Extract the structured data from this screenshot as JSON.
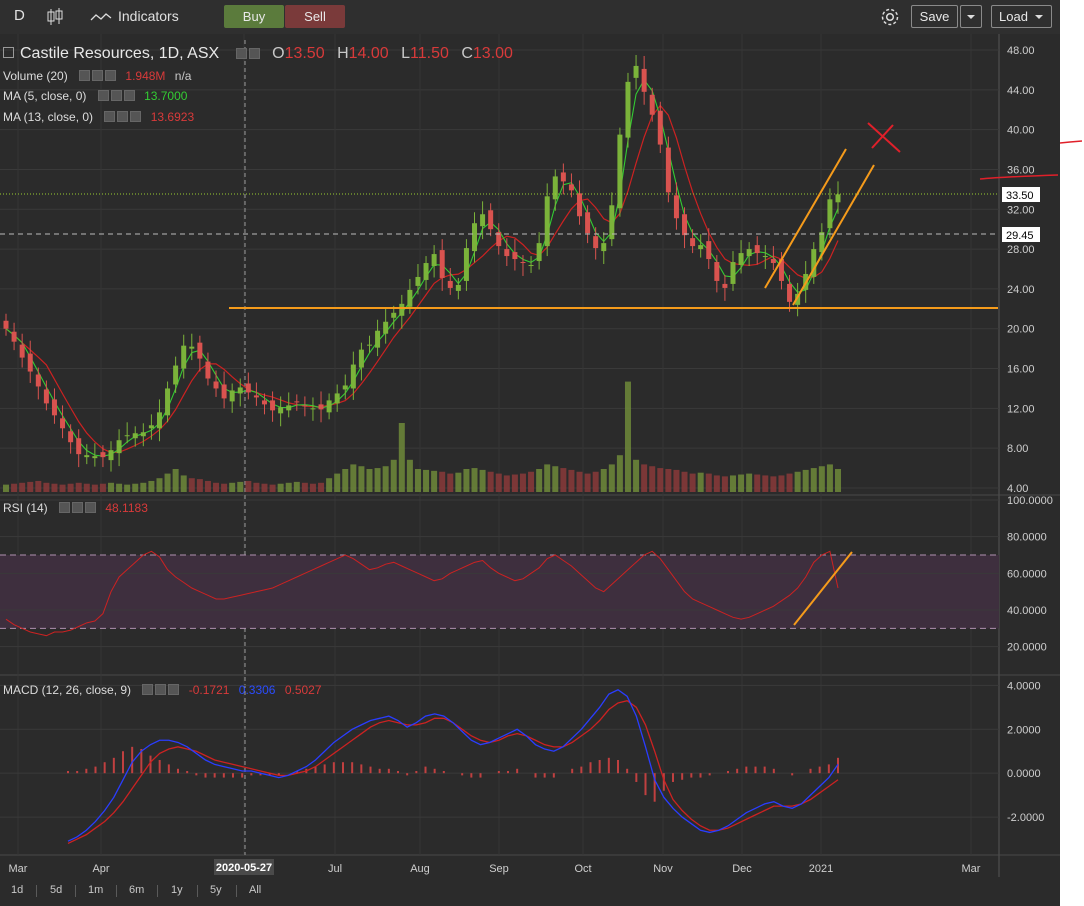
{
  "toolbar": {
    "interval": "D",
    "indicators_label": "Indicators",
    "buy_label": "Buy",
    "sell_label": "Sell",
    "save_label": "Save",
    "load_label": "Load"
  },
  "main_legend": {
    "title": "Castile Resources, 1D, ASX",
    "open_label": "O",
    "open": "13.50",
    "high_label": "H",
    "high": "14.00",
    "low_label": "L",
    "low": "11.50",
    "close_label": "C",
    "close": "13.00"
  },
  "indicators": {
    "volume": {
      "label": "Volume (20)",
      "value": "1.948M",
      "extra": "n/a"
    },
    "ma5": {
      "label": "MA (5, close, 0)",
      "value": "13.7000"
    },
    "ma13": {
      "label": "MA (13, close, 0)",
      "value": "13.6923"
    },
    "rsi": {
      "label": "RSI (14)",
      "value": "48.1183"
    },
    "macd": {
      "label": "MACD (12, 26, close, 9)",
      "value1": "-0.1721",
      "value2": "0.3306",
      "value3": "0.5027"
    }
  },
  "price_badges": {
    "last": "33.50",
    "ref": "29.45"
  },
  "date_marker": "2020-05-27",
  "range_buttons": [
    "1d",
    "5d",
    "1m",
    "6m",
    "1y",
    "5y",
    "All"
  ],
  "colors": {
    "up": "#7bb33a",
    "down": "#d9534f",
    "annotation": "#f59b1b",
    "cross": "#e0202a",
    "ma5": "#33cc33",
    "ma13": "#cc2222",
    "macd_line": "#2a3dff",
    "signal_line": "#cc2222",
    "rsi_line": "#cc2222"
  },
  "chart_data": [
    {
      "type": "candlestick",
      "title": "Castile Resources, 1D, ASX",
      "x_ticks": [
        "Mar",
        "Apr",
        "2020-05-27",
        "Jul",
        "Aug",
        "Sep",
        "Oct",
        "Nov",
        "Dec",
        "2021",
        "Mar"
      ],
      "y_ticks": [
        4,
        8,
        12,
        16,
        20,
        24,
        28,
        32,
        36,
        40,
        44,
        48
      ],
      "ylim": [
        4,
        48
      ],
      "close": [
        20.0,
        18.7,
        17.1,
        15.7,
        14.2,
        12.5,
        11.3,
        10.0,
        8.6,
        7.4,
        7.3,
        7.2,
        7.1,
        7.8,
        8.8,
        9.3,
        9.5,
        9.6,
        10.3,
        11.6,
        14.0,
        16.3,
        18.3,
        18.2,
        17.0,
        15.0,
        14.0,
        13.0,
        13.8,
        14.1,
        13.6,
        13.1,
        12.4,
        11.8,
        12.1,
        12.3,
        12.6,
        12.2,
        12.0,
        11.9,
        12.8,
        13.5,
        14.3,
        16.4,
        17.9,
        18.4,
        19.8,
        20.7,
        21.6,
        22.5,
        23.9,
        25.2,
        26.6,
        27.5,
        25.1,
        24.1,
        24.4,
        28.1,
        30.6,
        31.5,
        30.0,
        28.3,
        27.3,
        27.0,
        26.6,
        26.4,
        28.6,
        33.3,
        35.3,
        34.8,
        33.9,
        31.3,
        29.6,
        28.1,
        28.6,
        32.4,
        39.5,
        44.8,
        46.4,
        43.8,
        41.5,
        38.5,
        33.7,
        31.1,
        29.4,
        28.3,
        28.4,
        27.0,
        24.8,
        24.1,
        26.7,
        27.6,
        28.0,
        27.6,
        27.3,
        26.6,
        24.8,
        22.7,
        23.5,
        25.5,
        28.0,
        29.7,
        33.0,
        33.5
      ],
      "volume_M": [
        0.8,
        0.9,
        1.0,
        1.1,
        1.2,
        1.0,
        0.9,
        0.8,
        0.9,
        1.0,
        0.9,
        0.8,
        0.9,
        1.0,
        0.9,
        0.8,
        0.9,
        1.0,
        1.2,
        1.5,
        2.0,
        2.5,
        1.8,
        1.5,
        1.4,
        1.2,
        1.0,
        0.9,
        1.0,
        1.1,
        1.2,
        1.0,
        0.9,
        0.8,
        0.9,
        1.0,
        1.1,
        1.0,
        0.9,
        1.0,
        1.5,
        2.0,
        2.5,
        3.0,
        2.8,
        2.5,
        2.6,
        2.8,
        3.5,
        7.5,
        3.5,
        2.5,
        2.4,
        2.3,
        2.2,
        2.0,
        2.1,
        2.5,
        2.6,
        2.4,
        2.2,
        2.0,
        1.8,
        1.9,
        2.0,
        2.2,
        2.5,
        3.0,
        2.8,
        2.6,
        2.4,
        2.2,
        2.0,
        2.2,
        2.5,
        3.0,
        4.0,
        12.0,
        3.5,
        3.0,
        2.8,
        2.6,
        2.5,
        2.4,
        2.2,
        2.0,
        2.1,
        2.0,
        1.8,
        1.7,
        1.8,
        1.9,
        2.0,
        1.9,
        1.8,
        1.7,
        1.8,
        2.0,
        2.2,
        2.4,
        2.6,
        2.8,
        3.0,
        2.5
      ]
    },
    {
      "type": "line",
      "name": "RSI (14)",
      "y_ticks": [
        20,
        40,
        60,
        80,
        100
      ],
      "ylim": [
        10,
        100
      ],
      "bands": [
        30,
        70
      ],
      "values": [
        35,
        32,
        30,
        28,
        27,
        26,
        28,
        28,
        29,
        31,
        33,
        34,
        38,
        50,
        58,
        62,
        66,
        70,
        72,
        69,
        62,
        58,
        55,
        52,
        50,
        48,
        46,
        46,
        47,
        48,
        49,
        50,
        51,
        52,
        54,
        56,
        58,
        60,
        62,
        64,
        66,
        68,
        70,
        68,
        65,
        62,
        63,
        65,
        66,
        64,
        62,
        60,
        58,
        56,
        57,
        60,
        62,
        64,
        66,
        67,
        63,
        60,
        58,
        56,
        57,
        60,
        63,
        68,
        70,
        67,
        64,
        60,
        56,
        52,
        50,
        54,
        58,
        62,
        66,
        70,
        72,
        68,
        62,
        56,
        50,
        46,
        44,
        42,
        40,
        38,
        36,
        35,
        36,
        38,
        40,
        42,
        45,
        48,
        52,
        58,
        66,
        70,
        72,
        52
      ]
    },
    {
      "type": "line",
      "name": "MACD (12, 26, close, 9)",
      "y_ticks": [
        -2,
        0,
        2,
        4
      ],
      "ylim": [
        -3.5,
        4.2
      ],
      "series": [
        {
          "name": "MACD",
          "values": [
            -3.1,
            -2.9,
            -2.6,
            -2.2,
            -1.7,
            -1.1,
            -0.3,
            0.5,
            1.0,
            1.3,
            1.5,
            1.5,
            1.4,
            1.2,
            0.9,
            0.6,
            0.4,
            0.3,
            0.2,
            0.1,
            0.1,
            0.0,
            -0.1,
            -0.2,
            -0.1,
            0.1,
            0.3,
            0.6,
            1.0,
            1.4,
            1.7,
            2.0,
            2.2,
            2.4,
            2.5,
            2.6,
            2.4,
            2.1,
            2.3,
            2.6,
            2.7,
            2.6,
            2.3,
            1.9,
            1.5,
            1.3,
            1.4,
            1.6,
            1.8,
            2.0,
            1.7,
            1.3,
            1.1,
            1.0,
            1.2,
            1.6,
            2.0,
            2.5,
            3.0,
            3.6,
            3.8,
            3.5,
            2.6,
            1.2,
            -0.3,
            -1.1,
            -1.6,
            -2.0,
            -2.3,
            -2.6,
            -2.7,
            -2.6,
            -2.4,
            -2.1,
            -1.8,
            -1.6,
            -1.4,
            -1.3,
            -1.5,
            -1.6,
            -1.4,
            -1.0,
            -0.6,
            -0.2,
            0.4
          ]
        },
        {
          "name": "Signal",
          "values": [
            -3.2,
            -3.0,
            -2.8,
            -2.5,
            -2.2,
            -1.8,
            -1.3,
            -0.7,
            -0.1,
            0.5,
            0.9,
            1.1,
            1.2,
            1.1,
            1.0,
            0.8,
            0.6,
            0.5,
            0.4,
            0.3,
            0.2,
            0.1,
            0.0,
            -0.1,
            -0.1,
            0.0,
            0.1,
            0.3,
            0.6,
            0.9,
            1.2,
            1.5,
            1.8,
            2.1,
            2.3,
            2.4,
            2.3,
            2.2,
            2.2,
            2.3,
            2.5,
            2.5,
            2.3,
            2.0,
            1.7,
            1.5,
            1.4,
            1.5,
            1.7,
            1.8,
            1.7,
            1.5,
            1.3,
            1.2,
            1.2,
            1.4,
            1.7,
            2.0,
            2.4,
            2.9,
            3.2,
            3.3,
            3.0,
            2.2,
            1.0,
            -0.3,
            -1.2,
            -1.7,
            -2.1,
            -2.4,
            -2.6,
            -2.6,
            -2.5,
            -2.3,
            -2.1,
            -1.9,
            -1.7,
            -1.5,
            -1.5,
            -1.5,
            -1.4,
            -1.2,
            -0.9,
            -0.6,
            -0.3
          ]
        }
      ]
    }
  ]
}
